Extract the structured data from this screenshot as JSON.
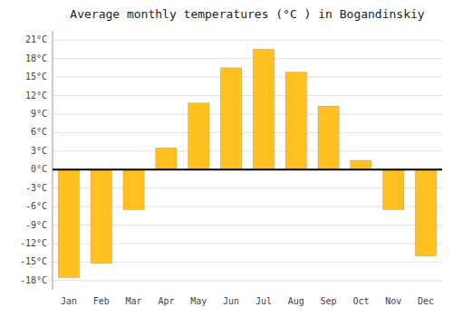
{
  "chart_data": {
    "type": "bar",
    "title": "Average monthly temperatures (°C ) in Bogandinskiy",
    "categories": [
      "Jan",
      "Feb",
      "Mar",
      "Apr",
      "May",
      "Jun",
      "Jul",
      "Aug",
      "Sep",
      "Oct",
      "Nov",
      "Dec"
    ],
    "values": [
      -17.5,
      -15.2,
      -6.5,
      3.5,
      10.8,
      16.5,
      19.5,
      15.8,
      10.3,
      1.5,
      -6.5,
      -14.0
    ],
    "color": "#FFC020",
    "ylim": [
      -19.5,
      22.5
    ],
    "yticks": [
      {
        "value": -18,
        "label": "-18°C"
      },
      {
        "value": -15,
        "label": "-15°C"
      },
      {
        "value": -12,
        "label": "-12°C"
      },
      {
        "value": -9,
        "label": "-9°C"
      },
      {
        "value": -6,
        "label": "-6°C"
      },
      {
        "value": -3,
        "label": "-3°C"
      },
      {
        "value": 0,
        "label": "0°C"
      },
      {
        "value": 3,
        "label": "3°C"
      },
      {
        "value": 6,
        "label": "6°C"
      },
      {
        "value": 9,
        "label": "9°C"
      },
      {
        "value": 12,
        "label": "12°C"
      },
      {
        "value": 15,
        "label": "15°C"
      },
      {
        "value": 18,
        "label": "18°C"
      },
      {
        "value": 21,
        "label": "21°C"
      }
    ],
    "grid": true
  }
}
